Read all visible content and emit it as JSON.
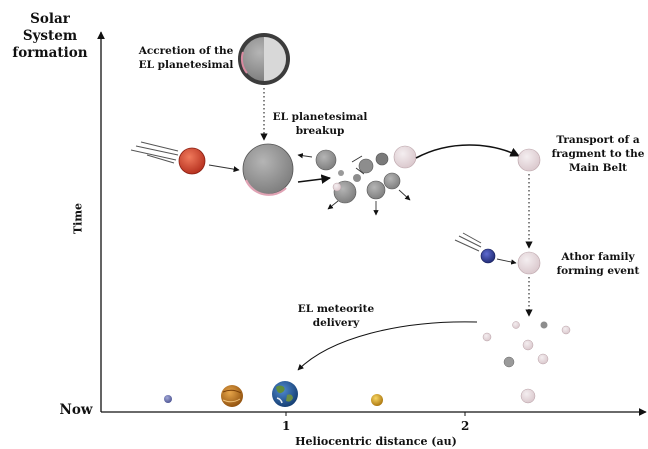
{
  "axes": {
    "y_top_label": "Solar System\nformation",
    "y_bottom_label": "Now",
    "y_axis_label": "Time",
    "x_axis_label": "Heliocentric distance (au)",
    "x_ticks": [
      "1",
      "2"
    ]
  },
  "labels": {
    "accretion": "Accretion of the\nEL planetesimal",
    "breakup": "EL planetesimal\nbreakup",
    "transport": "Transport of a\nfragment to the\nMain Belt",
    "athor": "Athor family\nforming event",
    "delivery": "EL meteorite\ndelivery"
  },
  "planets": [
    "mercury",
    "venus",
    "earth",
    "mars"
  ],
  "colors": {
    "axis": "#111111",
    "planetesimal_gray": "#9a9a9a",
    "fragment_pink": "#e9dde0",
    "impactor_red": "#d8452f",
    "impactor_blue": "#2f3d9a",
    "venus": "#c27a1c",
    "mars": "#d9a21b",
    "earth_ocean": "#2a5d9c"
  }
}
